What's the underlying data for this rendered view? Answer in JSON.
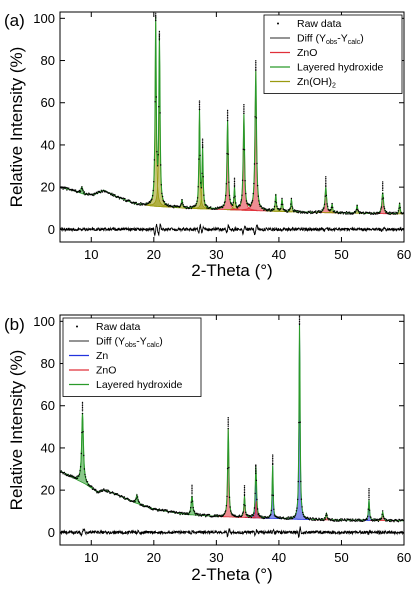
{
  "chart_data": [
    {
      "type": "line",
      "panel_label": "(a)",
      "xlabel": "2-Theta (°)",
      "ylabel": "Relative Intensity (%)",
      "xlim": [
        5,
        60
      ],
      "ylim": [
        -6,
        103
      ],
      "xticks": [
        10,
        20,
        30,
        40,
        50,
        60
      ],
      "yticks": [
        0,
        20,
        40,
        60,
        80,
        100
      ],
      "legend_position": "top-right",
      "legend": [
        {
          "label": "Raw data",
          "kind": "dots",
          "color": "#000000"
        },
        {
          "label": "Diff (Y",
          "sub1": "obs",
          "mid": "-Y",
          "sub2": "calc",
          "end": ")",
          "kind": "line",
          "color": "#555555"
        },
        {
          "label": "ZnO",
          "kind": "line",
          "color": "#e0303a"
        },
        {
          "label": "Layered hydroxide",
          "kind": "line",
          "color": "#2a9a2a"
        },
        {
          "label": "Zn(OH)",
          "sub1": "2",
          "kind": "line",
          "color": "#9a9a10"
        }
      ],
      "background_points": [
        [
          5,
          20
        ],
        [
          7,
          18.5
        ],
        [
          9,
          16.5
        ],
        [
          10.5,
          16.5
        ],
        [
          12,
          18.5
        ],
        [
          14,
          15.5
        ],
        [
          17,
          12
        ],
        [
          20,
          11
        ],
        [
          25,
          10
        ],
        [
          30,
          9.5
        ],
        [
          35,
          9
        ],
        [
          40,
          8.5
        ],
        [
          45,
          8
        ],
        [
          50,
          7.8
        ],
        [
          55,
          7.5
        ],
        [
          60,
          7.3
        ]
      ],
      "peaks": [
        {
          "phase": "Layered hydroxide",
          "x": 8.5,
          "height": 3,
          "width": 0.35
        },
        {
          "phase": "Zn(OH)2",
          "x": 20.3,
          "height": 87,
          "width": 0.22
        },
        {
          "phase": "Zn(OH)2",
          "x": 20.9,
          "height": 78,
          "width": 0.22
        },
        {
          "phase": "Zn(OH)2",
          "x": 24.5,
          "height": 4,
          "width": 0.2
        },
        {
          "phase": "Zn(OH)2",
          "x": 27.3,
          "height": 46,
          "width": 0.2
        },
        {
          "phase": "Zn(OH)2",
          "x": 27.8,
          "height": 28,
          "width": 0.2
        },
        {
          "phase": "ZnO",
          "x": 31.8,
          "height": 42,
          "width": 0.26
        },
        {
          "phase": "Zn(OH)2",
          "x": 32.9,
          "height": 10,
          "width": 0.2
        },
        {
          "phase": "ZnO",
          "x": 34.4,
          "height": 45,
          "width": 0.26
        },
        {
          "phase": "ZnO",
          "x": 36.3,
          "height": 66,
          "width": 0.28
        },
        {
          "phase": "Zn(OH)2",
          "x": 39.5,
          "height": 8,
          "width": 0.2
        },
        {
          "phase": "Zn(OH)2",
          "x": 40.5,
          "height": 6,
          "width": 0.2
        },
        {
          "phase": "Zn(OH)2",
          "x": 42.0,
          "height": 6,
          "width": 0.2
        },
        {
          "phase": "ZnO",
          "x": 47.5,
          "height": 12,
          "width": 0.3
        },
        {
          "phase": "Zn(OH)2",
          "x": 48.5,
          "height": 4,
          "width": 0.2
        },
        {
          "phase": "Zn(OH)2",
          "x": 52.5,
          "height": 4,
          "width": 0.2
        },
        {
          "phase": "ZnO",
          "x": 56.6,
          "height": 10,
          "width": 0.3
        },
        {
          "phase": "Zn(OH)2",
          "x": 59.3,
          "height": 5,
          "width": 0.2
        }
      ],
      "difference_offset": 0,
      "colors": {
        "ZnO": "#e0303a",
        "Layered hydroxide": "#2a9a2a",
        "Zn(OH)2": "#9a9a10",
        "Zn": "#2233dd",
        "diff": "#000000",
        "fit": "#2a9a2a",
        "raw": "#000000"
      }
    },
    {
      "type": "line",
      "panel_label": "(b)",
      "xlabel": "2-Theta (°)",
      "ylabel": "Relative Intensity (%)",
      "xlim": [
        5,
        60
      ],
      "ylim": [
        -6,
        103
      ],
      "xticks": [
        10,
        20,
        30,
        40,
        50,
        60
      ],
      "yticks": [
        0,
        20,
        40,
        60,
        80,
        100
      ],
      "legend_position": "top-left",
      "legend": [
        {
          "label": "Raw data",
          "kind": "dots",
          "color": "#000000"
        },
        {
          "label": "Diff (Y",
          "sub1": "obs",
          "mid": "-Y",
          "sub2": "calc",
          "end": ")",
          "kind": "line",
          "color": "#555555"
        },
        {
          "label": "Zn",
          "kind": "line",
          "color": "#2233dd"
        },
        {
          "label": "ZnO",
          "kind": "line",
          "color": "#e0303a"
        },
        {
          "label": "Layered hydroxide",
          "kind": "line",
          "color": "#2a9a2a"
        }
      ],
      "background_points": [
        [
          5,
          29
        ],
        [
          7,
          26
        ],
        [
          9,
          23
        ],
        [
          11,
          19
        ],
        [
          12,
          20
        ],
        [
          14,
          18
        ],
        [
          17,
          14
        ],
        [
          20,
          11
        ],
        [
          25,
          8.5
        ],
        [
          30,
          7.5
        ],
        [
          35,
          7
        ],
        [
          40,
          6.5
        ],
        [
          45,
          6
        ],
        [
          50,
          5.8
        ],
        [
          55,
          5.6
        ],
        [
          60,
          5.5
        ]
      ],
      "peaks": [
        {
          "phase": "Layered hydroxide",
          "x": 8.6,
          "height": 33,
          "width": 0.32
        },
        {
          "phase": "Layered hydroxide",
          "x": 17.3,
          "height": 4,
          "width": 0.3
        },
        {
          "phase": "Layered hydroxide",
          "x": 26.1,
          "height": 9,
          "width": 0.3
        },
        {
          "phase": "ZnO",
          "x": 31.9,
          "height": 42,
          "width": 0.22
        },
        {
          "phase": "ZnO",
          "x": 34.5,
          "height": 10,
          "width": 0.22
        },
        {
          "phase": "Zn",
          "x": 36.3,
          "height": 20,
          "width": 0.2
        },
        {
          "phase": "ZnO",
          "x": 36.4,
          "height": 8,
          "width": 0.22
        },
        {
          "phase": "Zn",
          "x": 39.0,
          "height": 25,
          "width": 0.18
        },
        {
          "phase": "Zn",
          "x": 43.3,
          "height": 92,
          "width": 0.2
        },
        {
          "phase": "ZnO",
          "x": 47.6,
          "height": 3,
          "width": 0.22
        },
        {
          "phase": "Zn",
          "x": 54.4,
          "height": 10,
          "width": 0.2
        },
        {
          "phase": "ZnO",
          "x": 56.6,
          "height": 4,
          "width": 0.25
        }
      ],
      "difference_offset": 0,
      "colors": {
        "ZnO": "#e0303a",
        "Layered hydroxide": "#2a9a2a",
        "Zn(OH)2": "#9a9a10",
        "Zn": "#2233dd",
        "diff": "#000000",
        "fit": "#2a9a2a",
        "raw": "#000000"
      }
    }
  ]
}
